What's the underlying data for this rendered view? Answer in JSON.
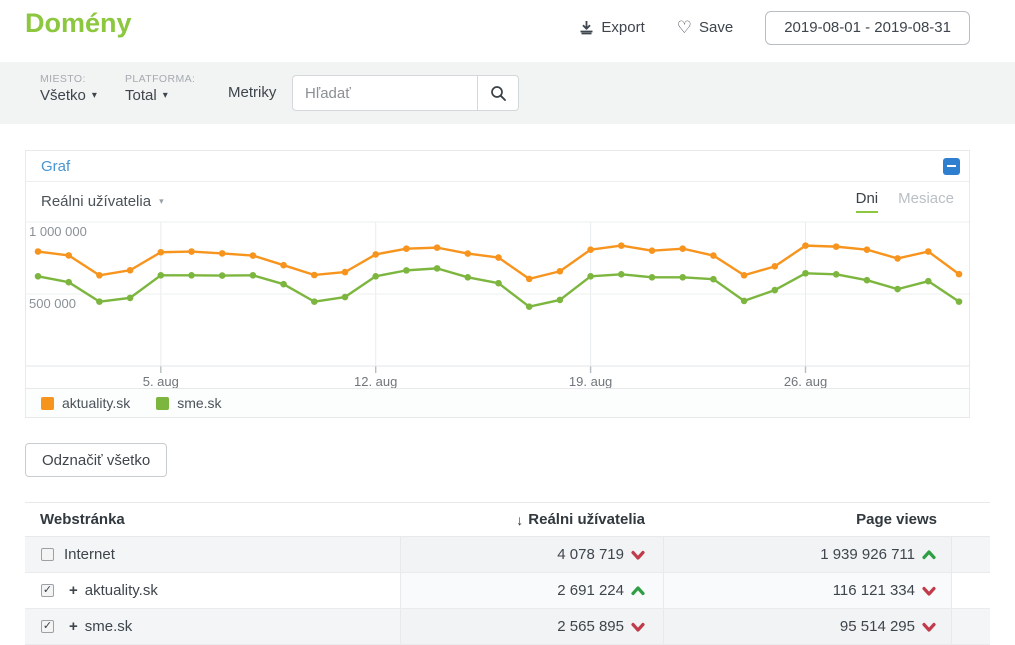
{
  "header": {
    "title": "Domény",
    "export_label": "Export",
    "save_label": "Save",
    "date_range": "2019-08-01 - 2019-08-31"
  },
  "filters": {
    "miesto_label": "MIESTO:",
    "miesto_value": "Všetko",
    "platforma_label": "PLATFORMA:",
    "platforma_value": "Total",
    "metriky_label": "Metriky",
    "search_placeholder": "Hľadať"
  },
  "chart_panel": {
    "title": "Graf",
    "metric_selector": "Reálni užívatelia",
    "tabs": [
      {
        "label": "Dni",
        "active": true
      },
      {
        "label": "Mesiace",
        "active": false
      }
    ]
  },
  "chart_data": {
    "type": "line",
    "title": "Reálni užívatelia",
    "x_unit": "day of August 2019",
    "x": [
      1,
      2,
      3,
      4,
      5,
      6,
      7,
      8,
      9,
      10,
      11,
      12,
      13,
      14,
      15,
      16,
      17,
      18,
      19,
      20,
      21,
      22,
      23,
      24,
      25,
      26,
      27,
      28,
      29,
      30,
      31
    ],
    "x_ticks": [
      {
        "day": 5,
        "label": "5. aug"
      },
      {
        "day": 12,
        "label": "12. aug"
      },
      {
        "day": 19,
        "label": "19. aug"
      },
      {
        "day": 26,
        "label": "26. aug"
      }
    ],
    "y_ticks": [
      {
        "value": 1000000,
        "label": "1 000 000"
      },
      {
        "value": 500000,
        "label": "500 000"
      }
    ],
    "ylim": [
      0,
      1010000
    ],
    "grid": true,
    "legend_position": "bottom",
    "series": [
      {
        "name": "aktuality.sk",
        "color": "#f7941e",
        "values": [
          795000,
          768000,
          630000,
          665000,
          790000,
          795000,
          782000,
          767000,
          700000,
          632000,
          652000,
          775000,
          815000,
          822000,
          781000,
          753000,
          605000,
          658000,
          808000,
          836000,
          801000,
          815000,
          767000,
          630000,
          692000,
          836000,
          829000,
          808000,
          747000,
          795000,
          638000
        ]
      },
      {
        "name": "sme.sk",
        "color": "#7cb63e",
        "values": [
          623000,
          582000,
          447000,
          473000,
          630000,
          630000,
          628000,
          630000,
          568000,
          447000,
          479000,
          623000,
          664000,
          678000,
          616000,
          575000,
          412000,
          459000,
          623000,
          637000,
          616000,
          616000,
          603000,
          452000,
          527000,
          644000,
          637000,
          596000,
          534000,
          589000,
          447000
        ]
      }
    ]
  },
  "legend": {
    "items": [
      {
        "label": "aktuality.sk",
        "color": "#f7941e"
      },
      {
        "label": "sme.sk",
        "color": "#7cb63e"
      }
    ]
  },
  "deselect_button_label": "Odznačiť všetko",
  "table": {
    "columns": {
      "website": "Webstránka",
      "real_users": "Reálni užívatelia",
      "page_views": "Page views"
    },
    "sort_icon": "↓",
    "expand_icon": "+",
    "trend_colors": {
      "up": "#2f9e44",
      "down": "#c13b4a"
    },
    "rows": [
      {
        "name": "Internet",
        "checked": false,
        "expandable": false,
        "real_users": "4 078 719",
        "real_users_trend": "down",
        "page_views": "1 939 926 711",
        "page_views_trend": "up"
      },
      {
        "name": "aktuality.sk",
        "checked": true,
        "expandable": true,
        "real_users": "2 691 224",
        "real_users_trend": "up",
        "page_views": "116 121 334",
        "page_views_trend": "down"
      },
      {
        "name": "sme.sk",
        "checked": true,
        "expandable": true,
        "real_users": "2 565 895",
        "real_users_trend": "down",
        "page_views": "95 514 295",
        "page_views_trend": "down"
      }
    ]
  },
  "icons": {
    "caret": "▾",
    "heart": "♡",
    "checkmark": "✓"
  },
  "colors": {
    "brand_green": "#8dc63f",
    "link_blue": "#4795d1",
    "collapse_blue": "#2f7fd0",
    "trend_up": "#2f9e44",
    "trend_down": "#c13b4a"
  }
}
